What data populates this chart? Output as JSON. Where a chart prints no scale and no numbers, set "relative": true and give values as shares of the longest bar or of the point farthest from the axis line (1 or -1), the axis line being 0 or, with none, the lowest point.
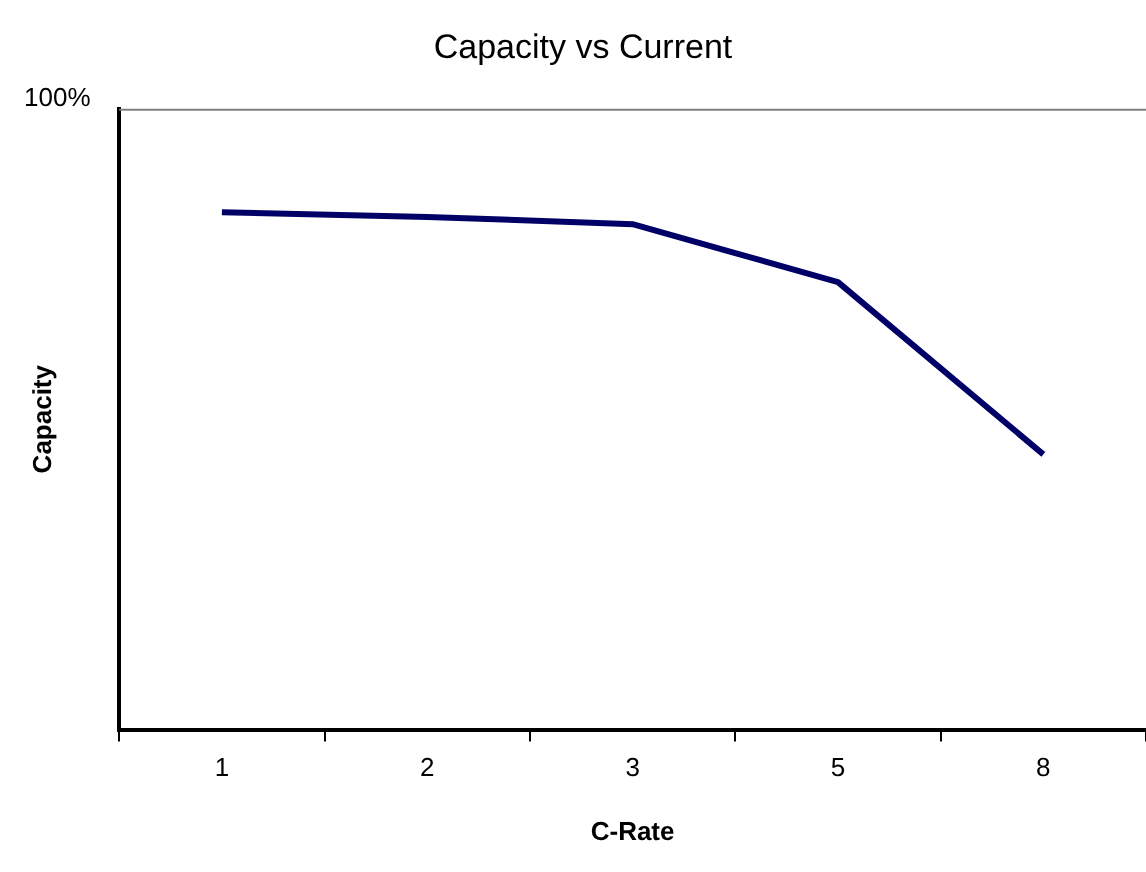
{
  "chart_data": {
    "type": "line",
    "title": "Capacity vs Current",
    "xlabel": "C-Rate",
    "ylabel": "Capacity",
    "categories": [
      "1",
      "2",
      "3",
      "5",
      "8"
    ],
    "series": [
      {
        "color": "#000066",
        "values": [
          1,
          0.991,
          0.977,
          0.865,
          0.532
        ]
      }
    ],
    "relative": true,
    "marker": "none",
    "legend": false,
    "grid": false,
    "annotations": [
      "100%"
    ]
  }
}
